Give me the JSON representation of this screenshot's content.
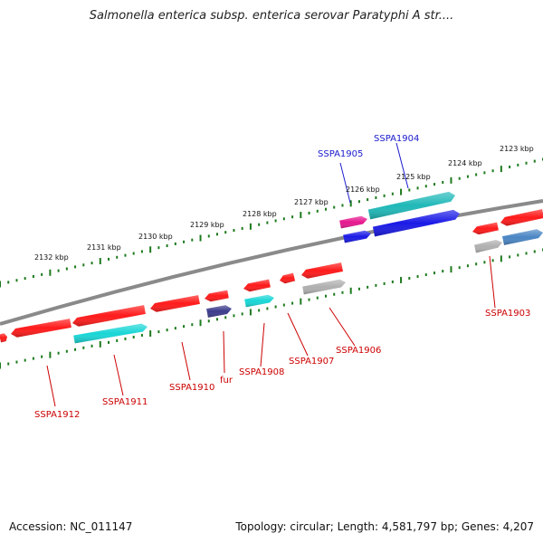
{
  "title": "Salmonella enterica subsp. enterica serovar Paratyphi A str....",
  "footer": {
    "accession": "Accession: NC_011147",
    "topology": "Topology: circular; Length: 4,581,797 bp; Genes: 4,207"
  },
  "colors": {
    "backbone": "#8a8a8a",
    "ticks": "#1d7a1d",
    "label_red": "#cc0000",
    "label_blue": "#1a1acc",
    "red": "#ff1a1a",
    "cyan": "#19d6d6",
    "blue": "#1a1ae6",
    "teal": "#20b8b8",
    "magenta": "#e6188f",
    "navy": "#3b3b8c",
    "gray": "#b0b0b0",
    "steel": "#4a86c4"
  },
  "scale_labels": [
    "2123 kbp",
    "2124 kbp",
    "2125 kbp",
    "2126 kbp",
    "2127 kbp",
    "2128 kbp",
    "2129 kbp",
    "2130 kbp",
    "2131 kbp",
    "2132 kbp"
  ],
  "gene_labels": [
    {
      "text": "SSPA1905",
      "color": "blue"
    },
    {
      "text": "SSPA1904",
      "color": "blue"
    },
    {
      "text": "SSPA1903",
      "color": "red"
    },
    {
      "text": "SSPA1906",
      "color": "red"
    },
    {
      "text": "SSPA1907",
      "color": "red"
    },
    {
      "text": "SSPA1908",
      "color": "red"
    },
    {
      "text": "fur",
      "color": "red"
    },
    {
      "text": "SSPA1910",
      "color": "red"
    },
    {
      "text": "SSPA1911",
      "color": "red"
    },
    {
      "text": "SSPA1912",
      "color": "red"
    }
  ]
}
